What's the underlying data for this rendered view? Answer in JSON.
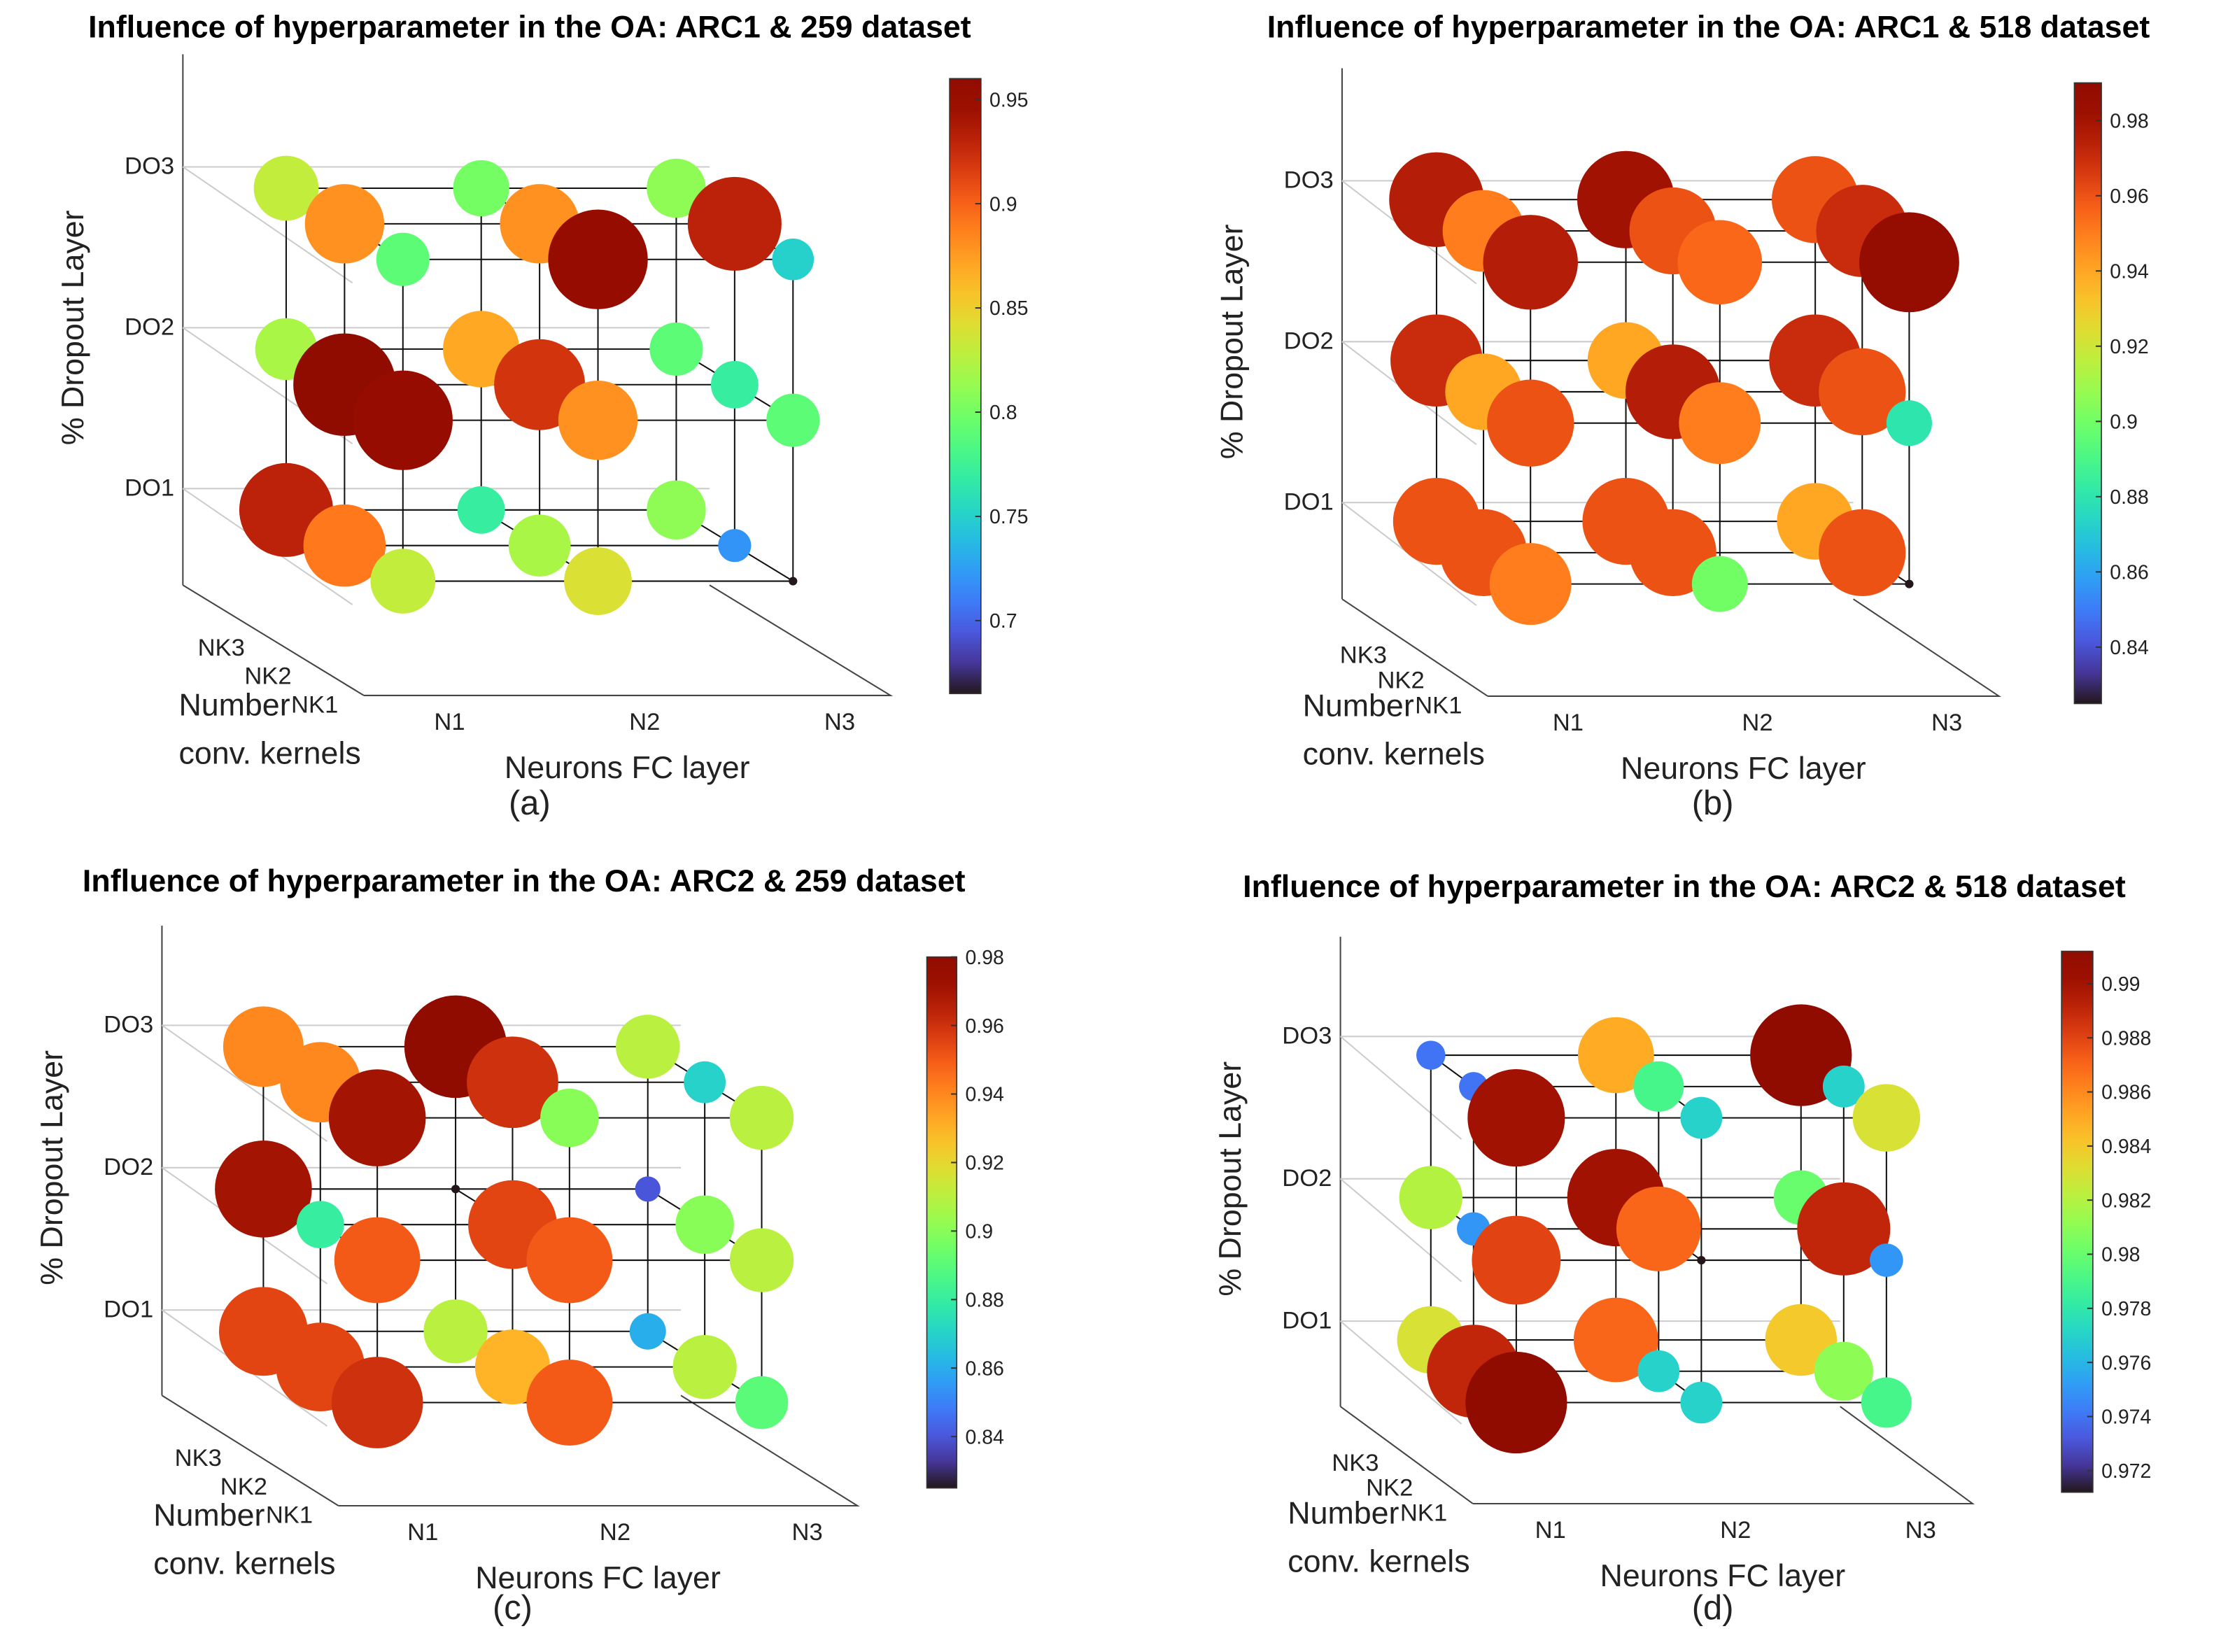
{
  "chart_data": [
    {
      "type": "scatter",
      "title": "Influence of hyperparameter in the OA: ARC1 & 259 dataset",
      "caption": "(a)",
      "xlabel": "Neurons FC layer",
      "ylabel": "Number conv. kernels",
      "zlabel": "% Dropout Layer",
      "x_ticks": [
        "N1",
        "N2",
        "N3"
      ],
      "y_ticks": [
        "NK1",
        "NK2",
        "NK3"
      ],
      "z_ticks": [
        "DO1",
        "DO2",
        "DO3"
      ],
      "colorbar": {
        "range": [
          0.665,
          0.96
        ],
        "ticks": [
          "0.7",
          "0.75",
          "0.8",
          "0.85",
          "0.9",
          "0.95"
        ],
        "tick_values": [
          0.7,
          0.75,
          0.8,
          0.85,
          0.9,
          0.95
        ]
      },
      "values_by_DO_NK_N": [
        [
          [
            0.83,
            0.84,
            0.665
          ],
          [
            0.89,
            0.82,
            0.72
          ],
          [
            0.93,
            0.77,
            0.81
          ]
        ],
        [
          [
            0.95,
            0.88,
            0.79
          ],
          [
            0.96,
            0.92,
            0.77
          ],
          [
            0.82,
            0.87,
            0.79
          ]
        ],
        [
          [
            0.79,
            0.95,
            0.75
          ],
          [
            0.88,
            0.88,
            0.93
          ],
          [
            0.83,
            0.8,
            0.81
          ]
        ]
      ]
    },
    {
      "type": "scatter",
      "title": "Influence of hyperparameter in the OA: ARC1 & 518 dataset",
      "caption": "(b)",
      "xlabel": "Neurons FC layer",
      "ylabel": "Number conv. kernels",
      "zlabel": "% Dropout Layer",
      "x_ticks": [
        "N1",
        "N2",
        "N3"
      ],
      "y_ticks": [
        "NK1",
        "NK2",
        "NK3"
      ],
      "z_ticks": [
        "DO1",
        "DO2",
        "DO3"
      ],
      "colorbar": {
        "range": [
          0.825,
          0.99
        ],
        "ticks": [
          "0.84",
          "0.86",
          "0.88",
          "0.9",
          "0.92",
          "0.94",
          "0.96",
          "0.98"
        ],
        "tick_values": [
          0.84,
          0.86,
          0.88,
          0.9,
          0.92,
          0.94,
          0.96,
          0.98
        ]
      },
      "values_by_DO_NK_N": [
        [
          [
            0.95,
            0.9,
            0.825
          ],
          [
            0.96,
            0.96,
            0.96
          ],
          [
            0.96,
            0.96,
            0.94
          ]
        ],
        [
          [
            0.96,
            0.95,
            0.88
          ],
          [
            0.94,
            0.975,
            0.96
          ],
          [
            0.97,
            0.94,
            0.97
          ]
        ],
        [
          [
            0.975,
            0.955,
            0.985
          ],
          [
            0.95,
            0.96,
            0.97
          ],
          [
            0.975,
            0.98,
            0.96
          ]
        ]
      ]
    },
    {
      "type": "scatter",
      "title": "Influence of hyperparameter in the OA: ARC2 & 259 dataset",
      "caption": "(c)",
      "xlabel": "Neurons FC layer",
      "ylabel": "Number conv. kernels",
      "zlabel": "% Dropout Layer",
      "x_ticks": [
        "N1",
        "N2",
        "N3"
      ],
      "y_ticks": [
        "NK1",
        "NK2",
        "NK3"
      ],
      "z_ticks": [
        "DO1",
        "DO2",
        "DO3"
      ],
      "colorbar": {
        "range": [
          0.825,
          0.98
        ],
        "ticks": [
          "0.84",
          "0.86",
          "0.88",
          "0.9",
          "0.92",
          "0.94",
          "0.96",
          "0.98"
        ],
        "tick_values": [
          0.84,
          0.86,
          0.88,
          0.9,
          0.92,
          0.94,
          0.96,
          0.98
        ]
      },
      "values_by_DO_NK_N": [
        [
          [
            0.96,
            0.95,
            0.89
          ],
          [
            0.955,
            0.93,
            0.91
          ],
          [
            0.955,
            0.91,
            0.86
          ]
        ],
        [
          [
            0.95,
            0.95,
            0.91
          ],
          [
            0.88,
            0.955,
            0.9
          ],
          [
            0.97,
            0.825,
            0.84
          ]
        ],
        [
          [
            0.97,
            0.9,
            0.91
          ],
          [
            0.94,
            0.96,
            0.87
          ],
          [
            0.94,
            0.98,
            0.91
          ]
        ]
      ]
    },
    {
      "type": "scatter",
      "title": "Influence of hyperparameter in the OA: ARC2 & 518 dataset",
      "caption": "(d)",
      "xlabel": "Neurons FC layer",
      "ylabel": "Number conv. kernels",
      "zlabel": "% Dropout Layer",
      "x_ticks": [
        "N1",
        "N2",
        "N3"
      ],
      "y_ticks": [
        "NK1",
        "NK2",
        "NK3"
      ],
      "z_ticks": [
        "DO1",
        "DO2",
        "DO3"
      ],
      "colorbar": {
        "range": [
          0.9712,
          0.9912
        ],
        "ticks": [
          "0.972",
          "0.974",
          "0.976",
          "0.978",
          "0.98",
          "0.982",
          "0.984",
          "0.986",
          "0.988",
          "0.99"
        ],
        "tick_values": [
          0.972,
          0.974,
          0.976,
          0.978,
          0.98,
          0.982,
          0.984,
          0.986,
          0.988,
          0.99
        ]
      },
      "values_by_DO_NK_N": [
        [
          [
            0.991,
            0.977,
            0.979
          ],
          [
            0.989,
            0.977,
            0.981
          ],
          [
            0.983,
            0.987,
            0.984
          ]
        ],
        [
          [
            0.988,
            0.9712,
            0.975
          ],
          [
            0.975,
            0.987,
            0.989
          ],
          [
            0.982,
            0.99,
            0.98
          ]
        ],
        [
          [
            0.99,
            0.977,
            0.983
          ],
          [
            0.974,
            0.979,
            0.977
          ],
          [
            0.974,
            0.985,
            0.991
          ]
        ]
      ]
    }
  ]
}
